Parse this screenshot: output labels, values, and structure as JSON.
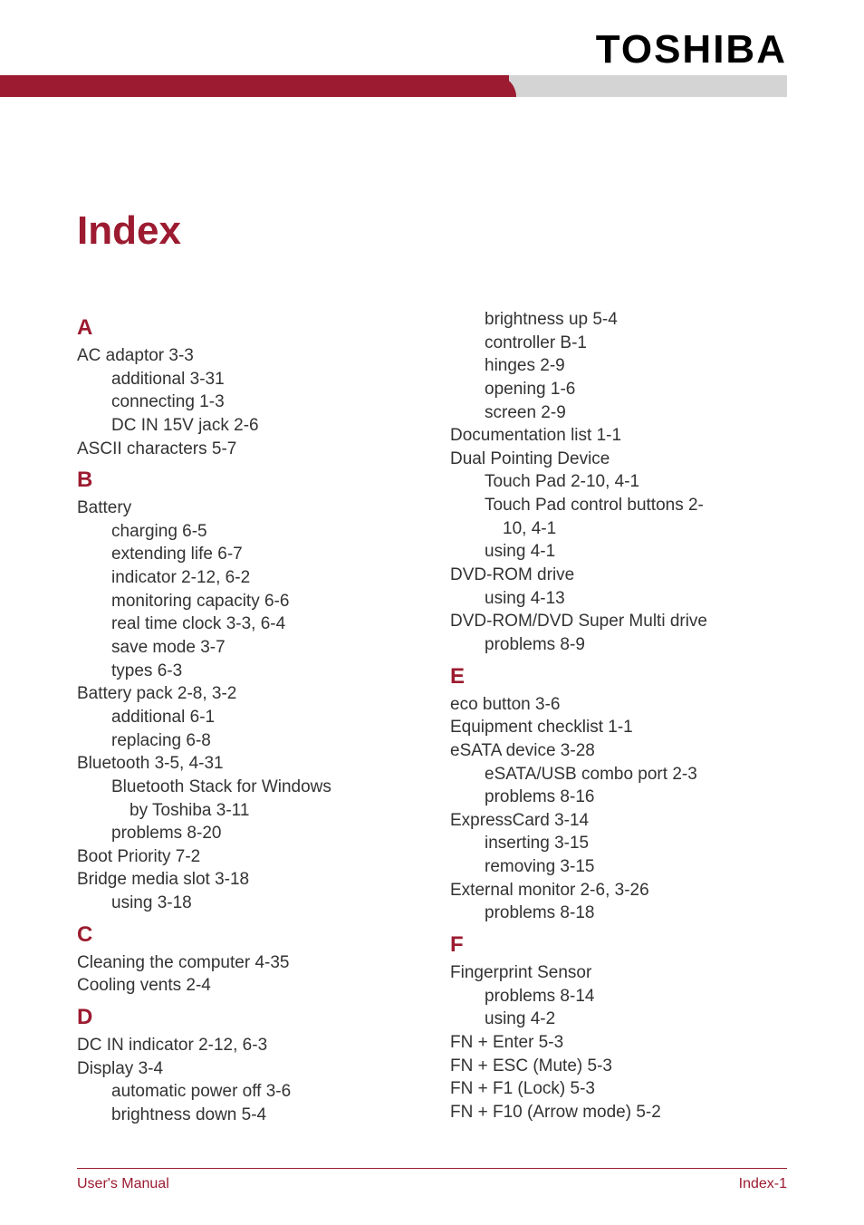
{
  "brand": {
    "logo_text": "TOSHIBA"
  },
  "colors": {
    "accent": "#9c1b30",
    "text": "#333333",
    "header_gray": "#d4d4d4",
    "background": "#ffffff"
  },
  "title": "Index",
  "footer": {
    "left": "User's Manual",
    "right": "Index-1"
  },
  "left_col": {
    "A": {
      "letter": "A",
      "items": [
        {
          "t": "AC adaptor 3-3",
          "sub": [
            {
              "t": "additional 3-31"
            },
            {
              "t": "connecting 1-3"
            },
            {
              "t": "DC IN 15V jack 2-6"
            }
          ]
        },
        {
          "t": "ASCII characters 5-7"
        }
      ]
    },
    "B": {
      "letter": "B",
      "items": [
        {
          "t": "Battery",
          "sub": [
            {
              "t": "charging 6-5"
            },
            {
              "t": "extending life 6-7"
            },
            {
              "t": "indicator 2-12, 6-2"
            },
            {
              "t": "monitoring capacity 6-6"
            },
            {
              "t": "real time clock 3-3, 6-4"
            },
            {
              "t": "save mode 3-7"
            },
            {
              "t": "types 6-3"
            }
          ]
        },
        {
          "t": "Battery pack 2-8, 3-2",
          "sub": [
            {
              "t": "additional 6-1"
            },
            {
              "t": "replacing 6-8"
            }
          ]
        },
        {
          "t": "Bluetooth 3-5, 4-31",
          "sub": [
            {
              "t": "Bluetooth Stack for Windows by Toshiba 3-11",
              "wrap": true
            },
            {
              "t": "problems 8-20"
            }
          ]
        },
        {
          "t": "Boot Priority 7-2"
        },
        {
          "t": "Bridge media slot 3-18",
          "sub": [
            {
              "t": "using 3-18"
            }
          ]
        }
      ]
    },
    "C": {
      "letter": "C",
      "items": [
        {
          "t": "Cleaning the computer 4-35"
        },
        {
          "t": "Cooling vents 2-4"
        }
      ]
    },
    "D": {
      "letter": "D",
      "items": [
        {
          "t": "DC IN indicator 2-12, 6-3"
        },
        {
          "t": "Display 3-4",
          "sub": [
            {
              "t": "automatic power off 3-6"
            },
            {
              "t": "brightness down 5-4"
            }
          ]
        }
      ]
    }
  },
  "right_col": {
    "D_cont": {
      "items": [
        {
          "t": "brightness up 5-4",
          "is_sub": true
        },
        {
          "t": "controller B-1",
          "is_sub": true
        },
        {
          "t": "hinges 2-9",
          "is_sub": true
        },
        {
          "t": "opening 1-6",
          "is_sub": true
        },
        {
          "t": "screen 2-9",
          "is_sub": true
        },
        {
          "t": "Documentation list 1-1"
        },
        {
          "t": "Dual Pointing Device",
          "sub": [
            {
              "t": "Touch Pad 2-10, 4-1"
            },
            {
              "t": "Touch Pad control buttons 2-10, 4-1",
              "wrap": true
            },
            {
              "t": "using 4-1"
            }
          ]
        },
        {
          "t": "DVD-ROM drive",
          "sub": [
            {
              "t": "using 4-13"
            }
          ]
        },
        {
          "t": "DVD-ROM/DVD Super Multi drive",
          "sub": [
            {
              "t": "problems 8-9"
            }
          ]
        }
      ]
    },
    "E": {
      "letter": "E",
      "items": [
        {
          "t": "eco button 3-6"
        },
        {
          "t": "Equipment checklist 1-1"
        },
        {
          "t": "eSATA device 3-28",
          "sub": [
            {
              "t": "eSATA/USB combo port 2-3"
            },
            {
              "t": "problems 8-16"
            }
          ]
        },
        {
          "t": "ExpressCard 3-14",
          "sub": [
            {
              "t": "inserting 3-15"
            },
            {
              "t": "removing 3-15"
            }
          ]
        },
        {
          "t": "External monitor 2-6, 3-26",
          "sub": [
            {
              "t": "problems 8-18"
            }
          ]
        }
      ]
    },
    "F": {
      "letter": "F",
      "items": [
        {
          "t": "Fingerprint Sensor",
          "sub": [
            {
              "t": "problems 8-14"
            },
            {
              "t": "using 4-2"
            }
          ]
        },
        {
          "t": "FN + Enter 5-3"
        },
        {
          "t": "FN + ESC (Mute) 5-3"
        },
        {
          "t": "FN + F1 (Lock) 5-3"
        },
        {
          "t": "FN + F10 (Arrow mode) 5-2"
        }
      ]
    }
  }
}
